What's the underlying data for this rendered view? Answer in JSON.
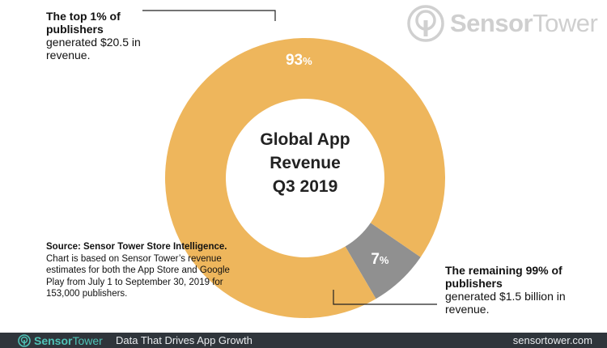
{
  "brand": {
    "name_part1": "Sensor",
    "name_part2": "Tower",
    "tagline": "Data That Drives App Growth",
    "url": "sensortower.com",
    "accent_color": "#4fc2b6"
  },
  "chart_data": {
    "type": "pie",
    "title": "Global App Revenue Q3 2019",
    "title_lines": [
      "Global App",
      "Revenue",
      "Q3 2019"
    ],
    "series": [
      {
        "name": "",
        "values": [
          93,
          7
        ],
        "colors": [
          "#eeb65c",
          "#909090"
        ]
      }
    ],
    "slice_labels": [
      "93",
      "7"
    ],
    "label_unit": "%",
    "donut": true
  },
  "annotations": {
    "top_bold": "The top 1% of publishers",
    "top_rest": "generated $20.5 in revenue.",
    "bottom_bold": "The remaining 99% of publishers",
    "bottom_rest": "generated $1.5 billion in revenue."
  },
  "source": {
    "bold": "Source: Sensor Tower Store Intelligence.",
    "rest": "Chart is based on Sensor Tower’s revenue estimates for both the App Store and Google Play from July 1 to September 30, 2019 for 153,000 publishers."
  }
}
